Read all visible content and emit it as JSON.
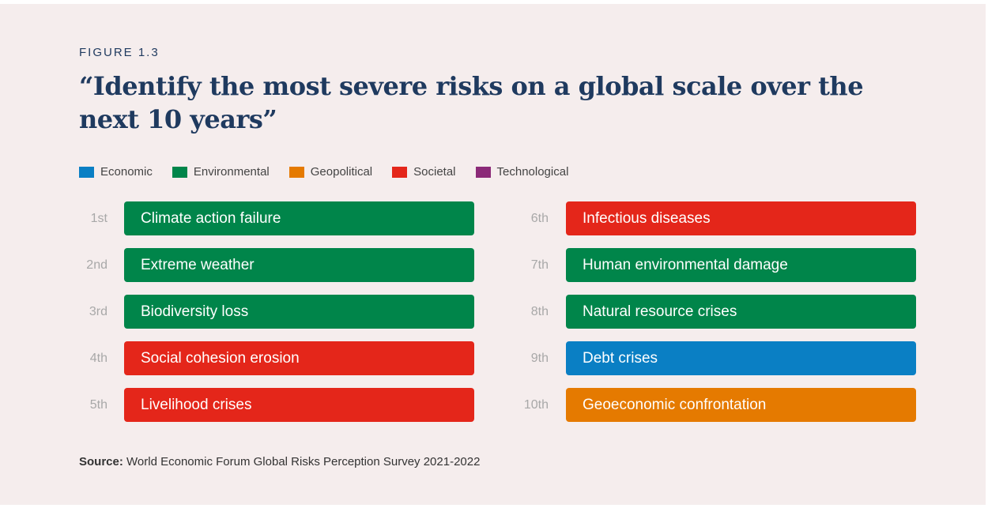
{
  "figure_label": "FIGURE 1.3",
  "title": "“Identify the most severe risks on a global scale over the next 10 years”",
  "source": {
    "label": "Source:",
    "text": "World Economic Forum Global Risks Perception Survey 2021-2022"
  },
  "colors": {
    "Economic": "#0a7fc4",
    "Environmental": "#00854a",
    "Geopolitical": "#e57a00",
    "Societal": "#e4261a",
    "Technological": "#8b2a78"
  },
  "chart_data": {
    "type": "table",
    "legend": [
      "Economic",
      "Environmental",
      "Geopolitical",
      "Societal",
      "Technological"
    ],
    "risks": [
      {
        "rank": "1st",
        "label": "Climate action failure",
        "category": "Environmental"
      },
      {
        "rank": "2nd",
        "label": "Extreme weather",
        "category": "Environmental"
      },
      {
        "rank": "3rd",
        "label": "Biodiversity loss",
        "category": "Environmental"
      },
      {
        "rank": "4th",
        "label": "Social cohesion erosion",
        "category": "Societal"
      },
      {
        "rank": "5th",
        "label": "Livelihood crises",
        "category": "Societal"
      },
      {
        "rank": "6th",
        "label": "Infectious diseases",
        "category": "Societal"
      },
      {
        "rank": "7th",
        "label": "Human environmental damage",
        "category": "Environmental"
      },
      {
        "rank": "8th",
        "label": "Natural resource crises",
        "category": "Environmental"
      },
      {
        "rank": "9th",
        "label": "Debt crises",
        "category": "Economic"
      },
      {
        "rank": "10th",
        "label": "Geoeconomic confrontation",
        "category": "Geopolitical"
      }
    ]
  }
}
